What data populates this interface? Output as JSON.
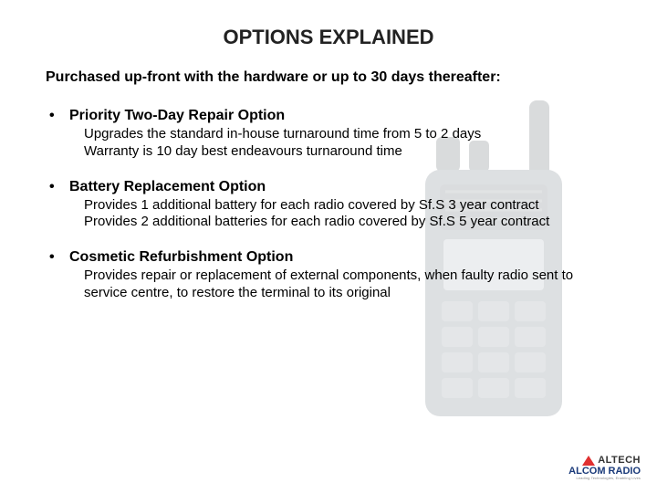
{
  "title": {
    "text": "OPTIONS EXPLAINED",
    "fontsize": 22,
    "color": "#222222"
  },
  "subtitle": {
    "text": "Purchased up-front with the hardware or up to 30 days thereafter:",
    "fontsize": 16
  },
  "bullets": [
    {
      "heading": "Priority Two-Day Repair Option",
      "lines": [
        "Upgrades the standard in-house turnaround time from 5 to 2 days",
        "Warranty is 10 day best endeavours turnaround time"
      ]
    },
    {
      "heading": "Battery Replacement Option",
      "lines": [
        "Provides 1 additional battery for each radio covered by Sf.S 3 year contract",
        "Provides 2 additional batteries for each radio covered by Sf.S 5 year contract"
      ]
    },
    {
      "heading": "Cosmetic Refurbishment Option",
      "lines": [
        "Provides repair or replacement of external components, when faulty radio sent to service centre, to restore the terminal to its original"
      ]
    }
  ],
  "bullet_heading_fontsize": 16,
  "bullet_body_fontsize": 15,
  "radioImage": {
    "body_color": "#6a7580",
    "screen_color": "#aeb7be",
    "antenna_color": "#555e66",
    "opacity": 0.22
  },
  "logo": {
    "altech": "ALTECH",
    "alcom": "ALCOM RADIO",
    "tagline": "Leading Technologies, Enabling Lives",
    "triangle_color": "#e03030",
    "altech_color": "#333333",
    "alcom_color": "#1a3a7a"
  }
}
